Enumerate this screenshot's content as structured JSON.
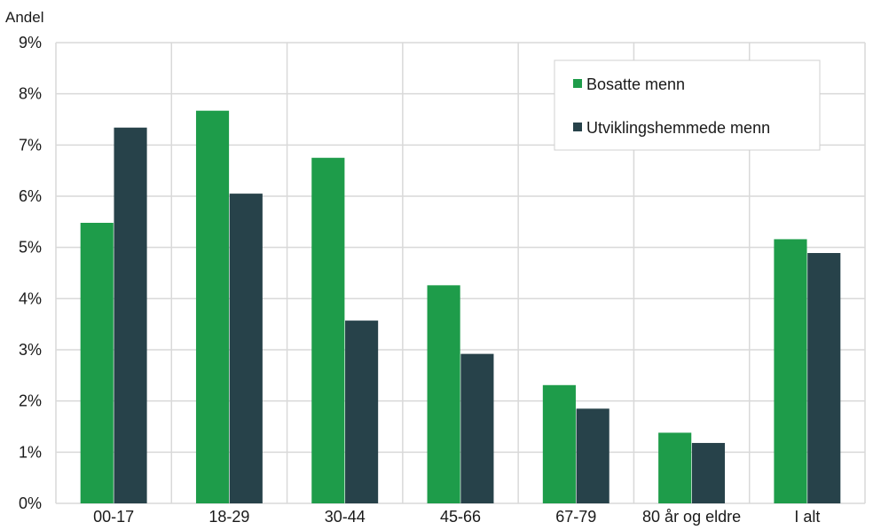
{
  "chart_data": {
    "type": "bar",
    "title": "",
    "ylabel": "Andel",
    "xlabel": "",
    "ylim": [
      0,
      9
    ],
    "yticks": [
      "0%",
      "1%",
      "2%",
      "3%",
      "4%",
      "5%",
      "6%",
      "7%",
      "8%",
      "9%"
    ],
    "categories": [
      "00-17",
      "18-29",
      "30-44",
      "45-66",
      "67-79",
      "80 år og eldre",
      "I alt"
    ],
    "series": [
      {
        "name": "Bosatte menn",
        "color": "#1e9c4a",
        "values": [
          5.48,
          7.67,
          6.75,
          4.26,
          2.31,
          1.38,
          5.16
        ]
      },
      {
        "name": "Utviklingshemmede menn",
        "color": "#27424a",
        "values": [
          7.34,
          6.05,
          3.57,
          2.92,
          1.85,
          1.18,
          4.89
        ]
      }
    ],
    "grid": true,
    "legend_position": "top-right"
  }
}
